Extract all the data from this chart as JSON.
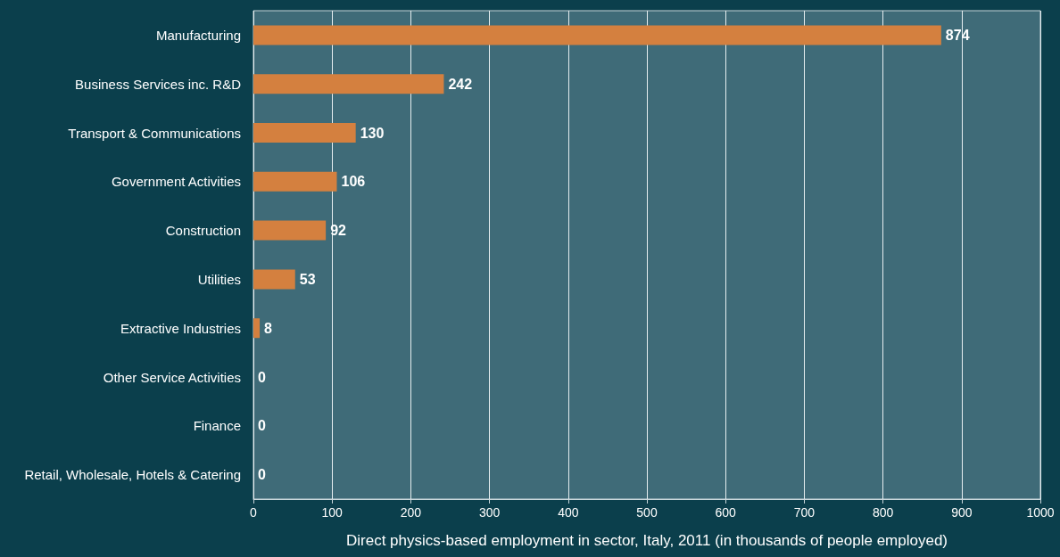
{
  "chart_data": {
    "type": "bar",
    "orientation": "horizontal",
    "xlabel": "Direct physics-based employment in sector, Italy, 2011 (in thousands of people employed)",
    "categories": [
      "Manufacturing",
      "Business Services inc. R&D",
      "Transport & Communications",
      "Government Activities",
      "Construction",
      "Utilities",
      "Extractive Industries",
      "Other Service Activities",
      "Finance",
      "Retail, Wholesale, Hotels & Catering"
    ],
    "values": [
      874,
      242,
      130,
      106,
      92,
      53,
      8,
      0,
      0,
      0
    ],
    "color": "#d4803f",
    "xlim": [
      0,
      1000
    ],
    "xticks": [
      0,
      100,
      200,
      300,
      400,
      500,
      600,
      700,
      800,
      900,
      1000
    ],
    "grid": "x",
    "data_labels": true
  }
}
